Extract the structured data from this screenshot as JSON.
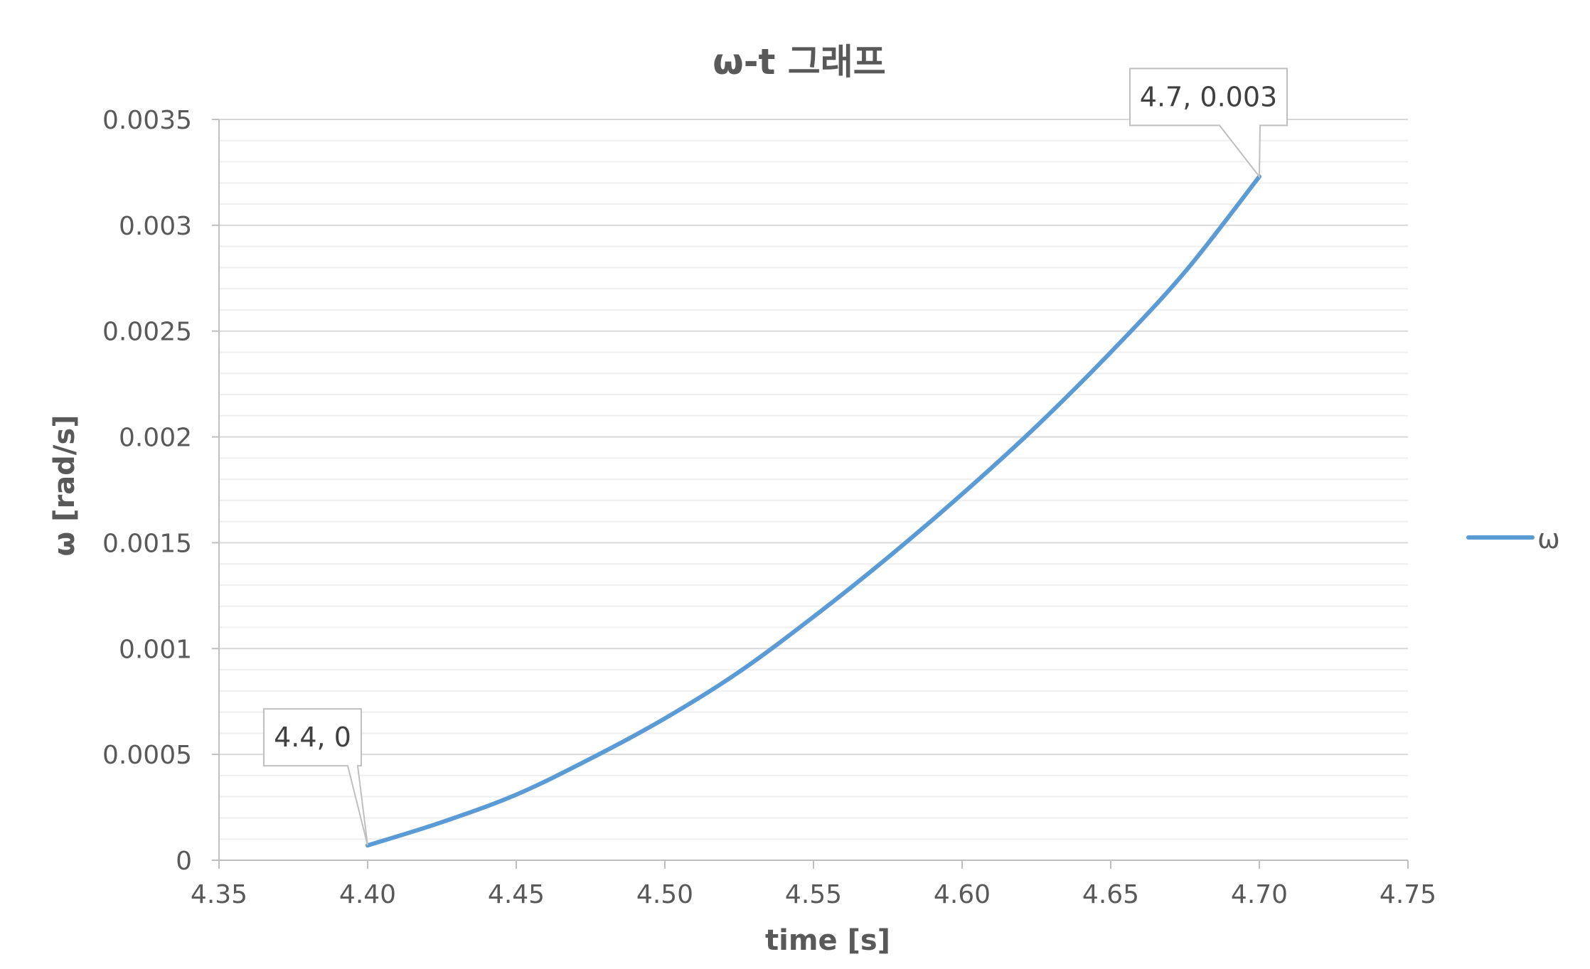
{
  "chart_data": {
    "type": "line",
    "title": "ω-t 그래프",
    "xlabel": "time [s]",
    "ylabel": "ω [rad/s]",
    "xlim": [
      4.35,
      4.75
    ],
    "ylim": [
      0,
      0.0035
    ],
    "x_ticks": [
      "4.35",
      "4.40",
      "4.45",
      "4.50",
      "4.55",
      "4.60",
      "4.65",
      "4.70",
      "4.75"
    ],
    "y_ticks": [
      "0",
      "0.0005",
      "0.001",
      "0.0015",
      "0.002",
      "0.0025",
      "0.003",
      "0.0035"
    ],
    "grid": true,
    "legend_position": "right",
    "series": [
      {
        "name": "ω",
        "color": "#5B9BD5",
        "x": [
          4.4,
          4.425,
          4.45,
          4.475,
          4.5,
          4.525,
          4.55,
          4.575,
          4.6,
          4.625,
          4.65,
          4.675,
          4.7
        ],
        "y": [
          7e-05,
          0.00018,
          0.00031,
          0.00048,
          0.00067,
          0.00089,
          0.00115,
          0.00143,
          0.00173,
          0.00205,
          0.0024,
          0.00278,
          0.00323
        ]
      }
    ],
    "annotations": [
      {
        "text": "4.4, 0",
        "x": 4.4,
        "y": 7e-05
      },
      {
        "text": "4.7, 0.003",
        "x": 4.7,
        "y": 0.00323
      }
    ]
  }
}
